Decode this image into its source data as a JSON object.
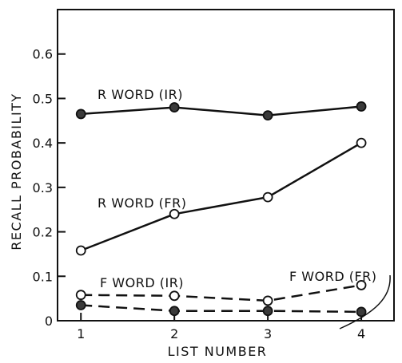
{
  "chart_data": {
    "type": "line",
    "xlabel": "LIST NUMBER",
    "ylabel": "RECALL PROBABILITY",
    "x": [
      1,
      2,
      3,
      4
    ],
    "xlim": [
      0.75,
      4.35
    ],
    "ylim": [
      0,
      0.7
    ],
    "x_ticks": [
      "1",
      "2",
      "3",
      "4"
    ],
    "y_ticks": [
      "0",
      "0.1",
      "0.2",
      "0.3",
      "0.4",
      "0.5",
      "0.6"
    ],
    "grid": false,
    "series": [
      {
        "name": "R WORD (IR)",
        "values": [
          0.465,
          0.48,
          0.462,
          0.482
        ],
        "line": "solid",
        "marker": "filled"
      },
      {
        "name": "R WORD (FR)",
        "values": [
          0.158,
          0.24,
          0.278,
          0.4
        ],
        "line": "solid",
        "marker": "open"
      },
      {
        "name": "F WORD (FR)",
        "values": [
          0.035,
          0.022,
          0.022,
          0.02
        ],
        "line": "dashed",
        "marker": "filled"
      },
      {
        "name": "F WORD (IR)",
        "values": [
          0.058,
          0.056,
          0.045,
          0.08
        ],
        "line": "dashed",
        "marker": "open"
      }
    ],
    "colors": {
      "ink": "#111111",
      "background": "#ffffff"
    }
  }
}
